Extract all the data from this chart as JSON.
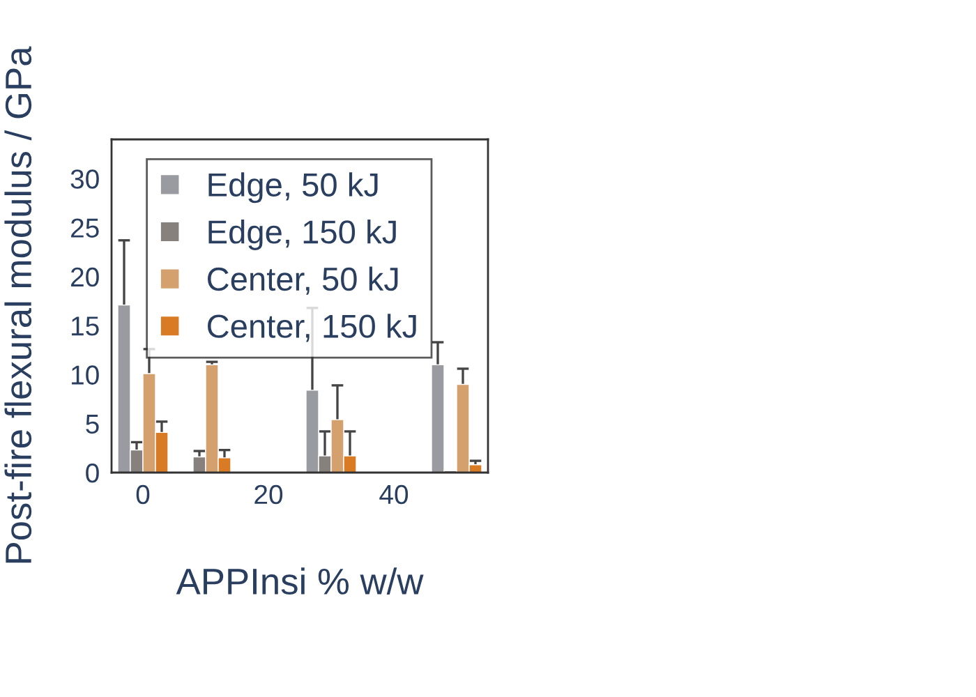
{
  "chart_data": {
    "type": "bar",
    "xlabel": "APPInsi % w/w",
    "ylabel": "Post-fire flexural modulus / GPa",
    "x": [
      0,
      10,
      30,
      50
    ],
    "series": [
      {
        "name": "Edge, 50 kJ",
        "color": "#9a9aa1",
        "values": [
          17.1,
          null,
          8.4,
          11.0
        ],
        "errors": [
          6.6,
          null,
          8.4,
          2.3
        ]
      },
      {
        "name": "Edge, 150 kJ",
        "color": "#87817e",
        "values": [
          2.3,
          1.6,
          1.7,
          0.2
        ],
        "errors": [
          0.8,
          0.6,
          2.5,
          null
        ]
      },
      {
        "name": "Center, 50 kJ",
        "color": "#d4a06e",
        "values": [
          10.1,
          11.0,
          5.4,
          9.0
        ],
        "errors": [
          2.5,
          0.3,
          3.5,
          1.6
        ]
      },
      {
        "name": "Center, 150 kJ",
        "color": "#d97b24",
        "values": [
          4.1,
          1.5,
          1.7,
          0.8
        ],
        "errors": [
          1.1,
          0.8,
          2.5,
          0.4
        ]
      }
    ],
    "xlim": [
      -5,
      55
    ],
    "xticks": [
      0,
      20,
      40
    ],
    "ylim": [
      0,
      34
    ],
    "yticks": [
      0,
      5,
      10,
      15,
      20,
      25,
      30
    ],
    "grid": false,
    "legend": "top left"
  }
}
